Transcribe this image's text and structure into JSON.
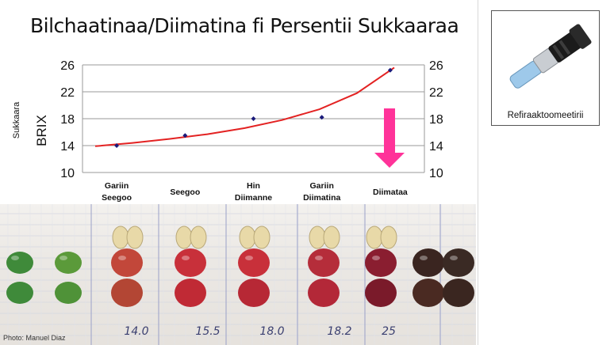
{
  "slide": {
    "title": "Bilchaatinaa/Diimatina fi Persentii Sukkaaraa",
    "photo_credit": "Photo: Manuel Diaz"
  },
  "refractometer": {
    "label": "Refiraaktoomeetirii"
  },
  "photo_labels": {
    "values": [
      "14.0",
      "15.5",
      "18.0",
      "18.2",
      "25"
    ]
  },
  "chart_data": {
    "type": "scatter",
    "ylabel_outer": "Sukkaara",
    "ylabel": "BRIX",
    "ylim": [
      10,
      26
    ],
    "yticks": [
      10,
      14,
      18,
      22,
      26
    ],
    "grid": true,
    "categories": [
      [
        "Gariin",
        "Seegoo"
      ],
      [
        "Seegoo"
      ],
      [
        "Hin",
        "Diimanne"
      ],
      [
        "Gariin",
        "Diimatina"
      ],
      [
        "Diimataa"
      ]
    ],
    "values": [
      14.0,
      15.5,
      18.0,
      18.2,
      25.2
    ],
    "trend": [
      13.9,
      14.4,
      15.0,
      15.7,
      16.6,
      17.8,
      19.4,
      21.8,
      25.6
    ],
    "colors": {
      "points": "#1a1a7a",
      "trend": "#e32222",
      "arrow": "#ff3399"
    }
  }
}
